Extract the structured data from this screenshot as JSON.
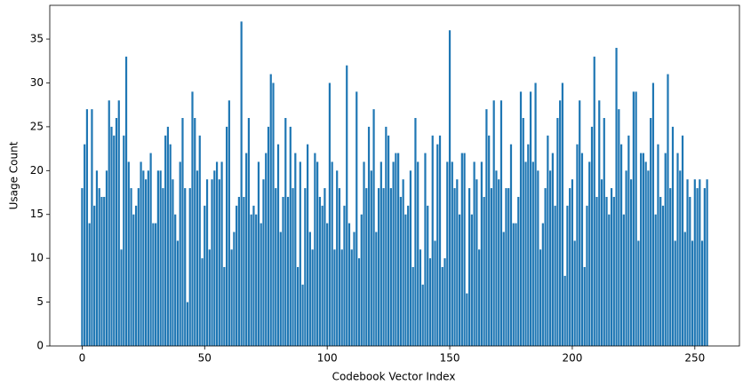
{
  "chart_data": {
    "type": "bar",
    "xlabel": "Codebook Vector Index",
    "ylabel": "Usage Count",
    "color": "#1f77b4",
    "x": [
      0,
      1,
      2,
      3,
      4,
      5,
      6,
      7,
      8,
      9,
      10,
      11,
      12,
      13,
      14,
      15,
      16,
      17,
      18,
      19,
      20,
      21,
      22,
      23,
      24,
      25,
      26,
      27,
      28,
      29,
      30,
      31,
      32,
      33,
      34,
      35,
      36,
      37,
      38,
      39,
      40,
      41,
      42,
      43,
      44,
      45,
      46,
      47,
      48,
      49,
      50,
      51,
      52,
      53,
      54,
      55,
      56,
      57,
      58,
      59,
      60,
      61,
      62,
      63,
      64,
      65,
      66,
      67,
      68,
      69,
      70,
      71,
      72,
      73,
      74,
      75,
      76,
      77,
      78,
      79,
      80,
      81,
      82,
      83,
      84,
      85,
      86,
      87,
      88,
      89,
      90,
      91,
      92,
      93,
      94,
      95,
      96,
      97,
      98,
      99,
      100,
      101,
      102,
      103,
      104,
      105,
      106,
      107,
      108,
      109,
      110,
      111,
      112,
      113,
      114,
      115,
      116,
      117,
      118,
      119,
      120,
      121,
      122,
      123,
      124,
      125,
      126,
      127,
      128,
      129,
      130,
      131,
      132,
      133,
      134,
      135,
      136,
      137,
      138,
      139,
      140,
      141,
      142,
      143,
      144,
      145,
      146,
      147,
      148,
      149,
      150,
      151,
      152,
      153,
      154,
      155,
      156,
      157,
      158,
      159,
      160,
      161,
      162,
      163,
      164,
      165,
      166,
      167,
      168,
      169,
      170,
      171,
      172,
      173,
      174,
      175,
      176,
      177,
      178,
      179,
      180,
      181,
      182,
      183,
      184,
      185,
      186,
      187,
      188,
      189,
      190,
      191,
      192,
      193,
      194,
      195,
      196,
      197,
      198,
      199,
      200,
      201,
      202,
      203,
      204,
      205,
      206,
      207,
      208,
      209,
      210,
      211,
      212,
      213,
      214,
      215,
      216,
      217,
      218,
      219,
      220,
      221,
      222,
      223,
      224,
      225,
      226,
      227,
      228,
      229,
      230,
      231,
      232,
      233,
      234,
      235,
      236,
      237,
      238,
      239,
      240,
      241,
      242,
      243,
      244,
      245,
      246,
      247,
      248,
      249,
      250,
      251,
      252,
      253,
      254,
      255
    ],
    "values": [
      18,
      23,
      27,
      14,
      27,
      16,
      20,
      18,
      17,
      17,
      20,
      28,
      25,
      24,
      26,
      28,
      11,
      24,
      33,
      21,
      18,
      15,
      16,
      18,
      21,
      20,
      19,
      20,
      22,
      14,
      14,
      20,
      20,
      18,
      24,
      25,
      23,
      19,
      15,
      12,
      21,
      26,
      18,
      5,
      18,
      29,
      26,
      20,
      24,
      10,
      16,
      19,
      11,
      19,
      20,
      21,
      19,
      21,
      9,
      25,
      28,
      11,
      13,
      16,
      17,
      37,
      17,
      22,
      26,
      15,
      16,
      15,
      21,
      14,
      19,
      22,
      25,
      31,
      30,
      18,
      23,
      13,
      17,
      26,
      17,
      25,
      18,
      22,
      9,
      21,
      7,
      18,
      23,
      13,
      11,
      22,
      21,
      17,
      16,
      18,
      14,
      30,
      21,
      11,
      20,
      18,
      11,
      16,
      32,
      14,
      11,
      13,
      29,
      10,
      15,
      21,
      18,
      25,
      20,
      27,
      13,
      18,
      21,
      18,
      25,
      24,
      18,
      21,
      22,
      22,
      17,
      19,
      15,
      16,
      20,
      9,
      26,
      21,
      11,
      7,
      22,
      16,
      10,
      24,
      12,
      23,
      24,
      9,
      10,
      21,
      36,
      21,
      18,
      19,
      15,
      22,
      22,
      6,
      18,
      15,
      21,
      19,
      11,
      21,
      17,
      27,
      24,
      18,
      28,
      20,
      19,
      28,
      13,
      18,
      18,
      23,
      14,
      14,
      17,
      29,
      26,
      21,
      23,
      29,
      21,
      30,
      20,
      11,
      14,
      18,
      24,
      20,
      22,
      16,
      26,
      28,
      30,
      8,
      16,
      18,
      19,
      12,
      23,
      28,
      22,
      9,
      16,
      21,
      25,
      33,
      17,
      28,
      19,
      26,
      17,
      15,
      18,
      17,
      34,
      27,
      23,
      15,
      20,
      24,
      19,
      29,
      29,
      12,
      22,
      22,
      21,
      20,
      26,
      30,
      15,
      23,
      17,
      16,
      22,
      31,
      18,
      25,
      12,
      22,
      20,
      24,
      13,
      19,
      17,
      12,
      19,
      18,
      19,
      12,
      18,
      19
    ],
    "xlim": [
      -13.2,
      268.2
    ],
    "xticks": [
      0,
      50,
      100,
      150,
      200,
      250
    ],
    "ylim": [
      0,
      38.85
    ],
    "yticks": [
      0,
      5,
      10,
      15,
      20,
      25,
      30,
      35
    ]
  }
}
